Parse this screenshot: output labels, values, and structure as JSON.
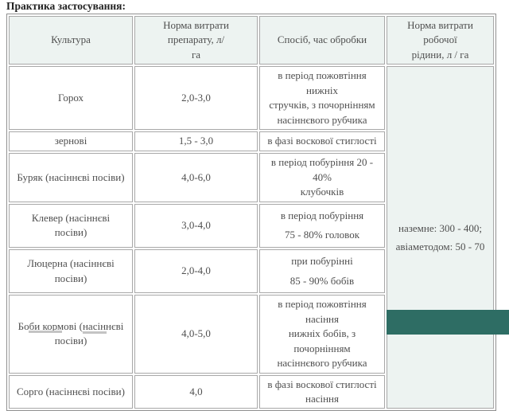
{
  "page": {
    "title": "Практика застосування:"
  },
  "colors": {
    "header_bg": "#edf3f1",
    "working_fluid_column_bg": "#edf3f1",
    "corner_block": "#2e6d64",
    "table_border": "#a8a8a8",
    "body_text": "#4f4f4f",
    "title_text": "#222222"
  },
  "table": {
    "headers": [
      [
        "Культура"
      ],
      [
        "Норма витрати препарату, л/",
        "га"
      ],
      [
        "Спосіб, час обробки"
      ],
      [
        "Норма витрати робочої",
        "рідини, л / га"
      ]
    ],
    "rows": [
      {
        "culture": [
          "Горох"
        ],
        "rate": "2,0-3,0",
        "method": [
          "в період пожовтіння нижніх",
          "стручків, з почорнінням",
          "насіннєвого рубчика"
        ]
      },
      {
        "culture": [
          "зернові"
        ],
        "rate": "1,5 - 3,0",
        "method": [
          "в фазі воскової стиглості"
        ]
      },
      {
        "culture": [
          "Буряк (насіннєві посіви)"
        ],
        "rate": "4,0-6,0",
        "method": [
          "в період побуріння 20 - 40%",
          "клубочків"
        ]
      },
      {
        "culture": [
          "Клевер (насіннєві посіви)"
        ],
        "rate": "3,0-4,0",
        "method": [
          "в період побуріння",
          "75 - 80% головок"
        ]
      },
      {
        "culture": [
          "Люцерна (насіннєві посіви)"
        ],
        "rate": "2,0-4,0",
        "method": [
          "при побурінні",
          "85 - 90% бобів"
        ]
      },
      {
        "culture": [
          "Боби кормові (насіннєві",
          "посіви)"
        ],
        "rate": "4,0-5,0",
        "method": [
          "в період пожовтіння насіння",
          "нижніх бобів, з почорнінням",
          "насіннєвого рубчика"
        ]
      },
      {
        "culture": [
          "Сорго (насіннєві посіви)"
        ],
        "rate": "4,0",
        "method": [
          "в фазі воскової стиглості",
          "насіння"
        ]
      }
    ],
    "working_fluid": [
      "наземне: 300 - 400;",
      "авіаметодом: 50 - 70"
    ]
  }
}
